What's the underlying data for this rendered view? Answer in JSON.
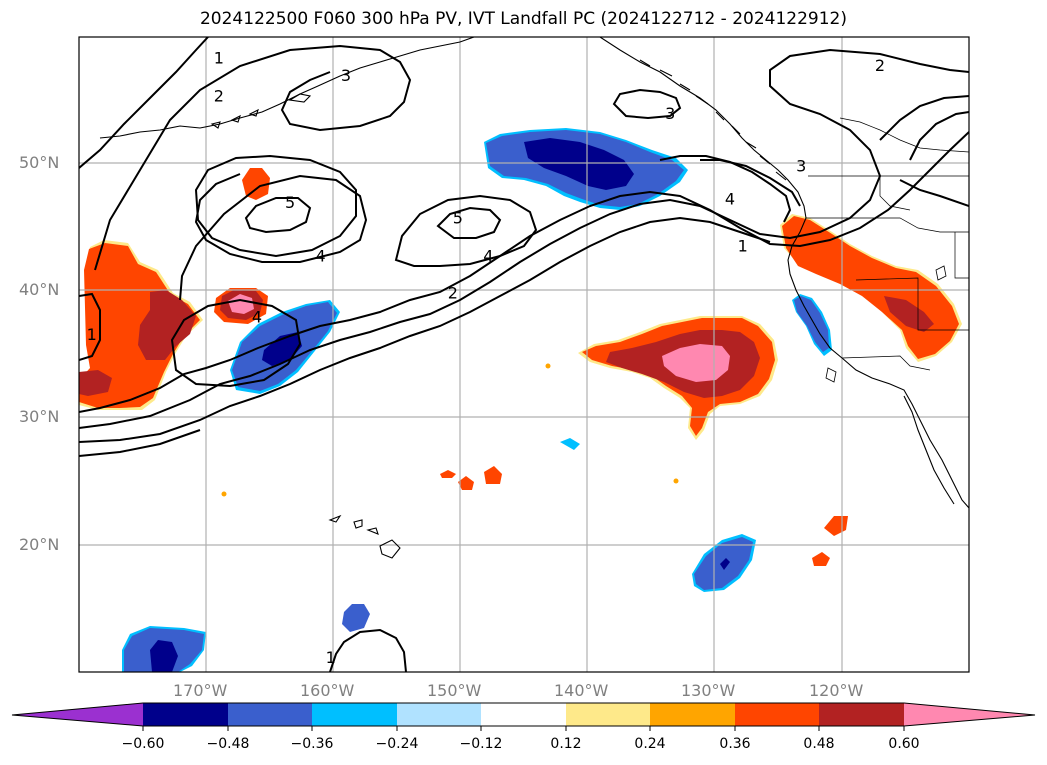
{
  "title": "2024122500 F060 300 hPa PV, IVT Landfall PC (2024122712 - 2024122912)",
  "map": {
    "projection": "PlateCarree",
    "lon_range": [
      -180,
      -110
    ],
    "lat_range": [
      10,
      60
    ],
    "lat_ticks": [
      {
        "value": 50,
        "label": "50°N"
      },
      {
        "value": 40,
        "label": "40°N"
      },
      {
        "value": 30,
        "label": "30°N"
      },
      {
        "value": 20,
        "label": "20°N"
      }
    ],
    "lon_ticks": [
      {
        "value": -170,
        "label": "170°W"
      },
      {
        "value": -160,
        "label": "160°W"
      },
      {
        "value": -150,
        "label": "150°W"
      },
      {
        "value": -140,
        "label": "140°W"
      },
      {
        "value": -130,
        "label": "130°W"
      },
      {
        "value": -120,
        "label": "120°W"
      }
    ],
    "gridlines": true
  },
  "pv_contours": {
    "field": "300 hPa PV",
    "color": "#000000",
    "labels": [
      {
        "text": "1",
        "lon": -169.0,
        "lat": 58.4
      },
      {
        "text": "2",
        "lon": -169.0,
        "lat": 55.4
      },
      {
        "text": "3",
        "lon": -159.0,
        "lat": 57.0
      },
      {
        "text": "5",
        "lon": -163.4,
        "lat": 47.0
      },
      {
        "text": "4",
        "lon": -161.0,
        "lat": 42.8
      },
      {
        "text": "4",
        "lon": -166.0,
        "lat": 38.0
      },
      {
        "text": "1",
        "lon": -179.0,
        "lat": 36.6
      },
      {
        "text": "5",
        "lon": -150.2,
        "lat": 45.8
      },
      {
        "text": "4",
        "lon": -147.8,
        "lat": 42.8
      },
      {
        "text": "2",
        "lon": -150.6,
        "lat": 39.9
      },
      {
        "text": "3",
        "lon": -133.5,
        "lat": 54.0
      },
      {
        "text": "3",
        "lon": -123.2,
        "lat": 49.9
      },
      {
        "text": "4",
        "lon": -128.8,
        "lat": 47.3
      },
      {
        "text": "1",
        "lon": -127.8,
        "lat": 43.6
      },
      {
        "text": "2",
        "lon": -117.0,
        "lat": 57.8
      },
      {
        "text": "1",
        "lon": -160.2,
        "lat": 11.2
      }
    ]
  },
  "ivt_pc_anomalies": {
    "field": "IVT Landfall PC",
    "period": "2024122712 - 2024122912",
    "positive_regions": [
      {
        "name": "dateline subtropical plume",
        "center_lon": -176.5,
        "center_lat": 37.0,
        "peak": 0.5
      },
      {
        "name": "central subtropical band",
        "center_lon": -131.0,
        "center_lat": 34.0,
        "peak": 0.62
      },
      {
        "name": "west-coast landfall band",
        "center_lon": -120.0,
        "center_lat": 40.0,
        "peak": 0.45
      },
      {
        "name": "small core near 167W",
        "center_lon": -166.3,
        "center_lat": 38.7,
        "peak": 0.62
      }
    ],
    "negative_regions": [
      {
        "name": "gulf of alaska trough",
        "center_lon": -140.0,
        "center_lat": 50.0,
        "peak": -0.6
      },
      {
        "name": "north-central pacific",
        "center_lon": -163.5,
        "center_lat": 35.8,
        "peak": -0.55
      },
      {
        "name": "southern oregon coast",
        "center_lon": -123.5,
        "center_lat": 37.5,
        "peak": -0.4
      },
      {
        "name": "east of hawaii",
        "center_lon": -129.5,
        "center_lat": 18.6,
        "peak": -0.5
      },
      {
        "name": "southwest corner",
        "center_lon": -173.0,
        "center_lat": 11.4,
        "peak": -0.55
      }
    ]
  },
  "colorbar": {
    "ticks": [
      "−0.60",
      "−0.48",
      "−0.36",
      "−0.24",
      "−0.12",
      "0.12",
      "0.24",
      "0.36",
      "0.48",
      "0.60"
    ],
    "colors": {
      "under": "#9b30d0",
      "n060": "#00008b",
      "n048": "#3a5fcd",
      "n036": "#00bfff",
      "n024": "#b0e2ff",
      "n012": "#ffffff",
      "p012": "#fee98a",
      "p024": "#ffa500",
      "p036": "#ff4500",
      "p048": "#b22222",
      "over": "#ff88b0"
    }
  }
}
